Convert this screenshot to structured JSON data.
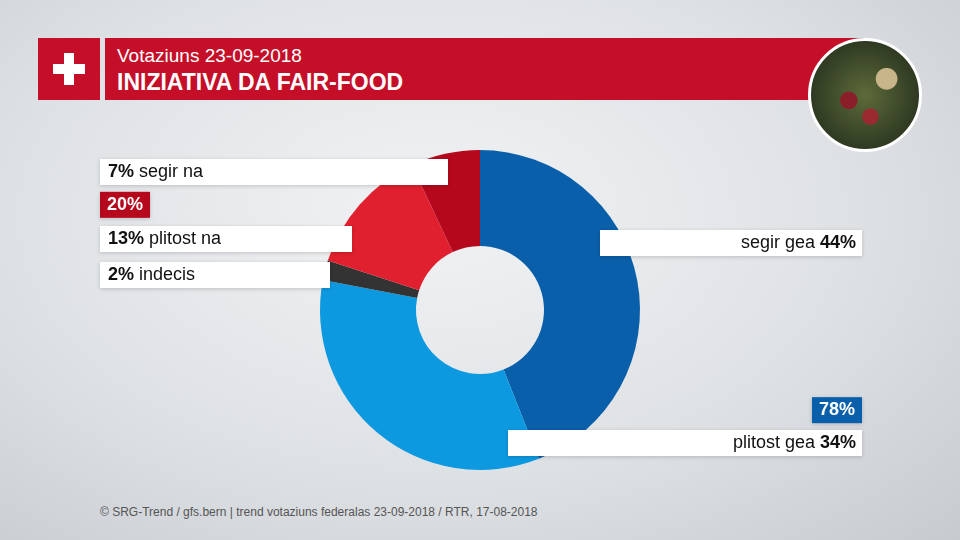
{
  "chart_data": {
    "type": "doughnut",
    "subtitle": "Votaziuns 23-09-2018",
    "title": "INIZIATIVA DA FAIR-FOOD",
    "categories": [
      "segir gea",
      "plitost gea",
      "indecis",
      "plitost na",
      "segir na"
    ],
    "values": [
      44,
      34,
      2,
      13,
      7
    ],
    "value_labels": [
      "44%",
      "34%",
      "2%",
      "13%",
      "7%"
    ],
    "colors": [
      "#0a5faa",
      "#0d99e0",
      "#333333",
      "#e0202e",
      "#b5081c"
    ],
    "data_labels": true,
    "totals": [
      {
        "value": 78,
        "label": "78%",
        "color": "#0a5faa"
      },
      {
        "value": 20,
        "label": "20%",
        "color": "#b5081c"
      }
    ],
    "annotations": [
      "© SRG-Trend / gfs.bern  |  trend votaziuns federalas 23-09-2018 / RTR, 17-08-2018"
    ]
  }
}
